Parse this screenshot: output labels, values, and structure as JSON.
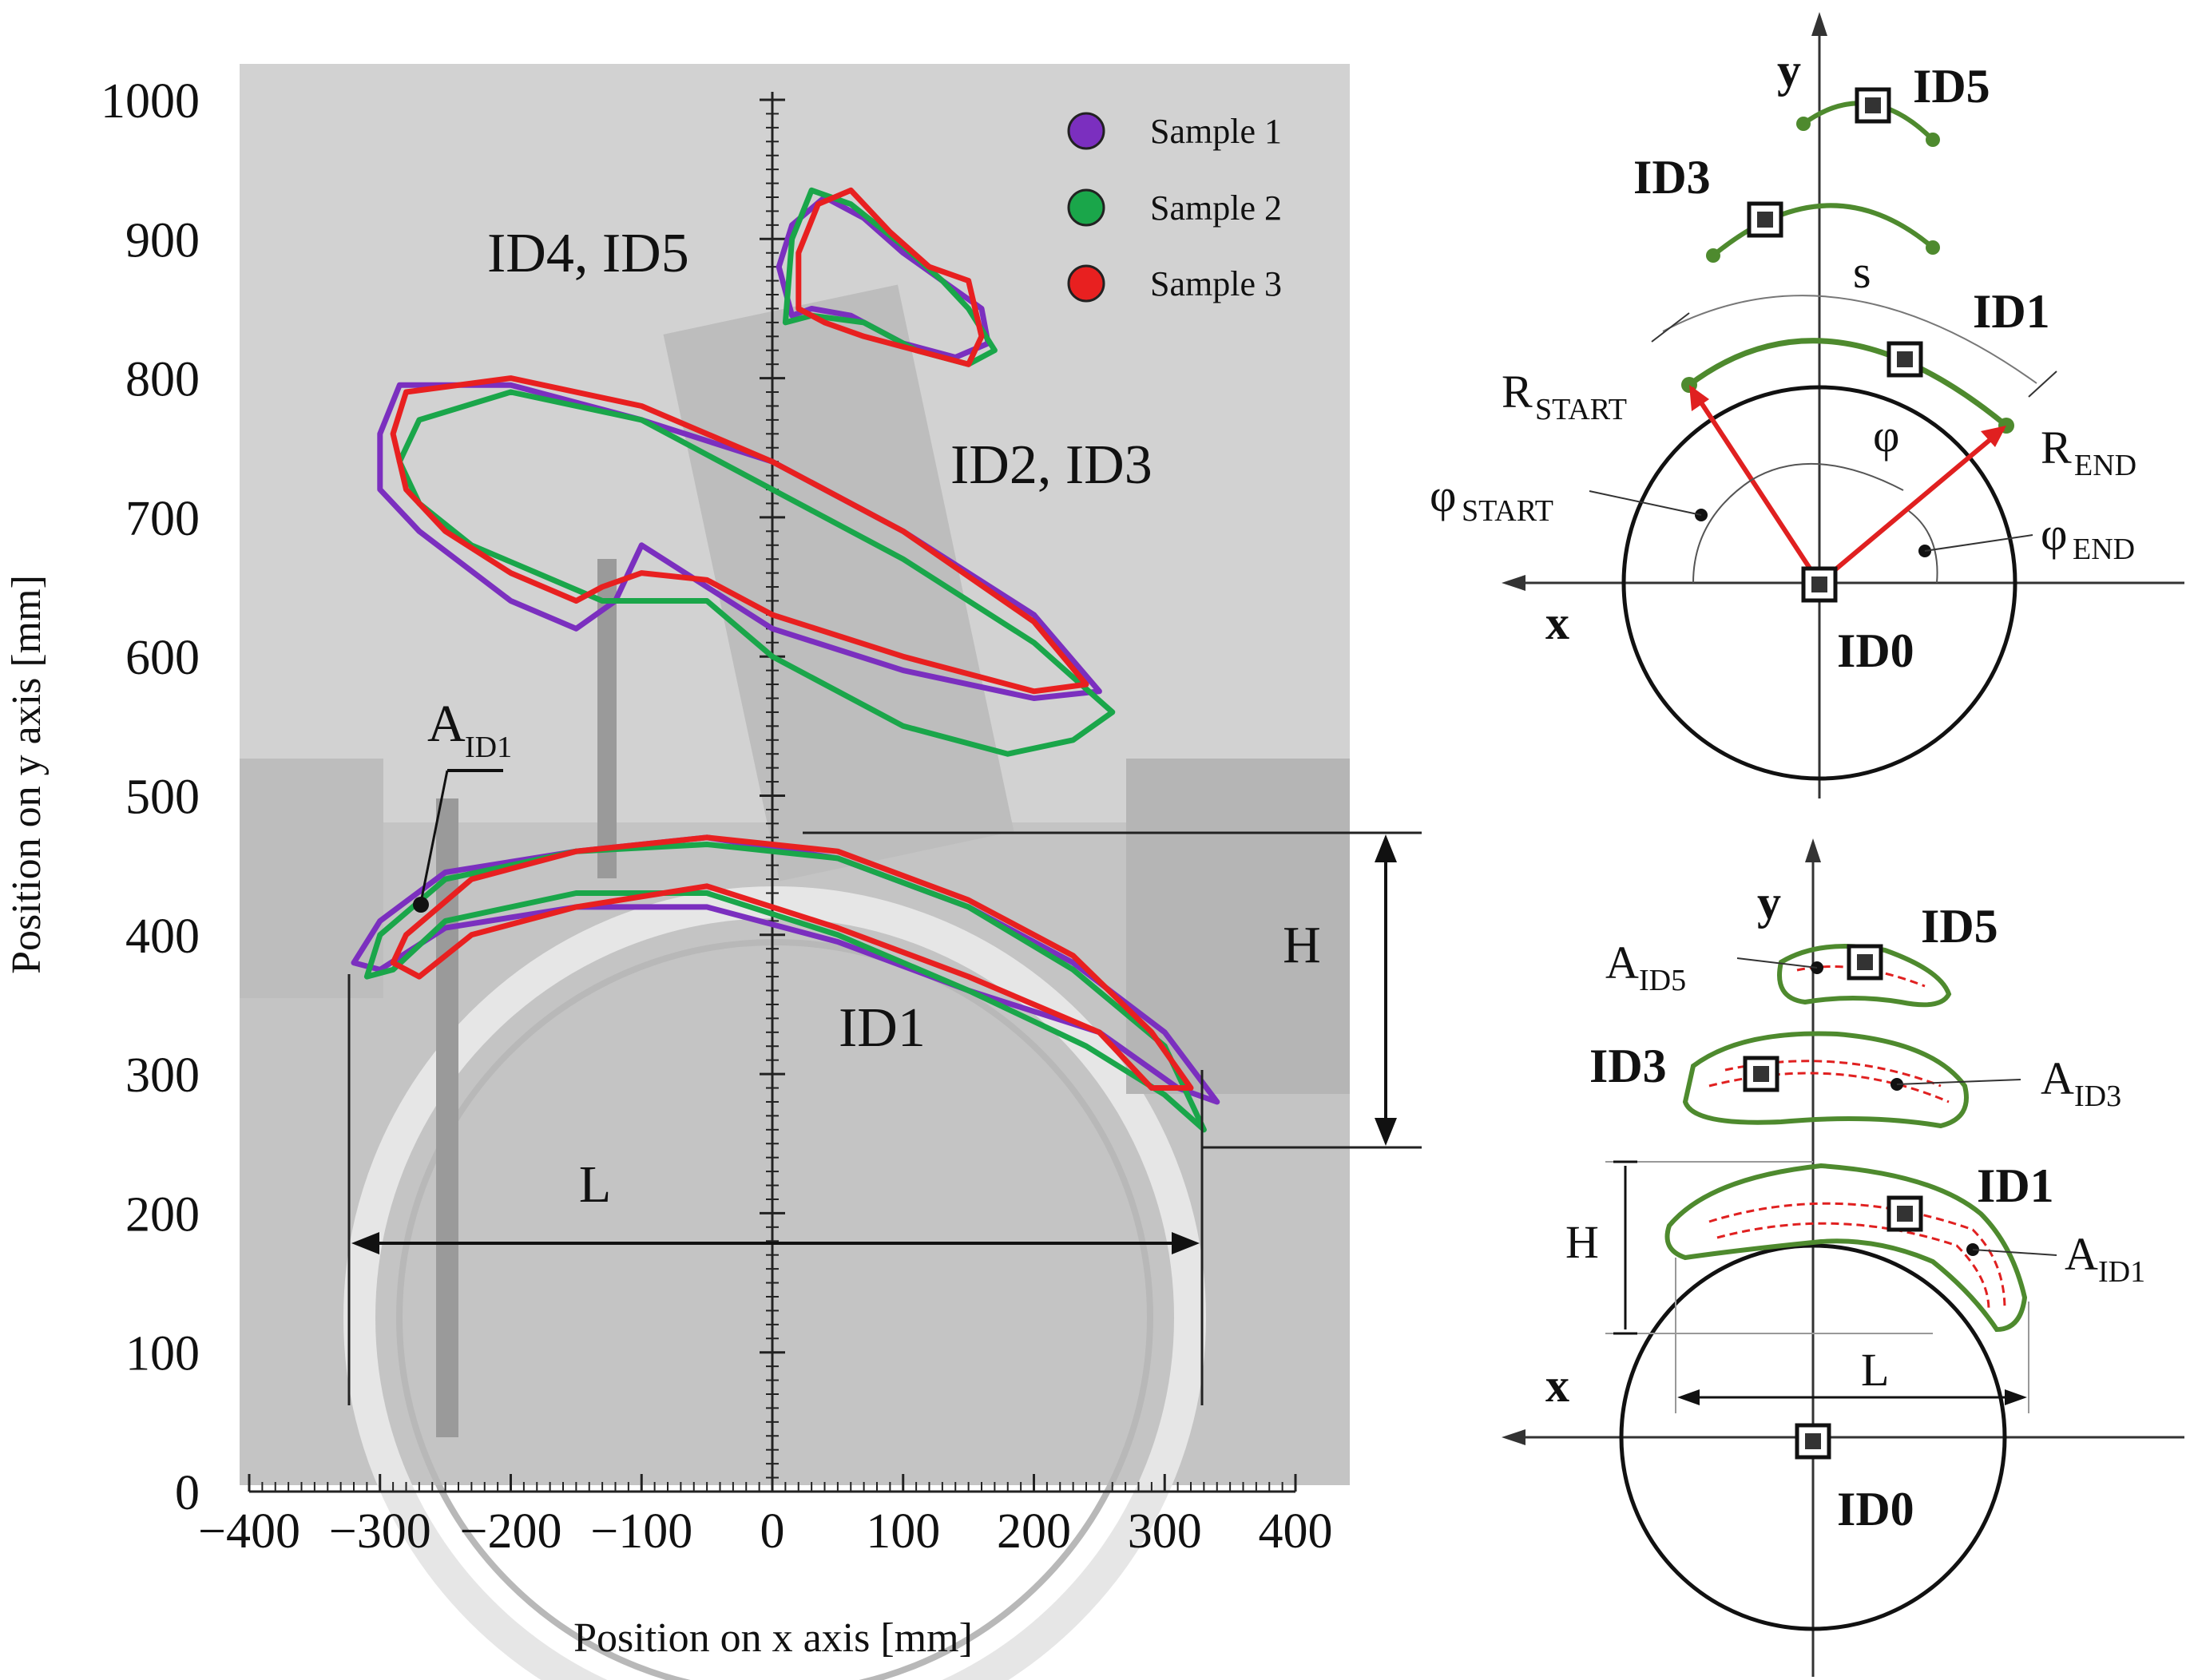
{
  "chart_data": [
    {
      "type": "line",
      "title": "",
      "xlabel": "Position on x axis [mm]",
      "ylabel": "Position on y axis [mm]",
      "xlim": [
        -400,
        400
      ],
      "ylim": [
        0,
        1000
      ],
      "x_ticks": [
        -400,
        -300,
        -200,
        -100,
        0,
        100,
        200,
        300,
        400
      ],
      "x_tick_labels": [
        "−400",
        "−300",
        "−200",
        "−100",
        "0",
        "100",
        "200",
        "300",
        "400"
      ],
      "y_ticks": [
        0,
        100,
        200,
        300,
        400,
        500,
        600,
        700,
        800,
        900,
        1000
      ],
      "y_tick_labels": [
        "0",
        "100",
        "200",
        "300",
        "400",
        "500",
        "600",
        "700",
        "800",
        "900",
        "1000"
      ],
      "legend_position": "top-right",
      "series": [
        {
          "name": "Sample 1",
          "color": "#7b2fbf",
          "regions": {
            "ID1": [
              [
                -320,
                380
              ],
              [
                -300,
                410
              ],
              [
                -250,
                445
              ],
              [
                -150,
                460
              ],
              [
                -50,
                470
              ],
              [
                50,
                455
              ],
              [
                150,
                420
              ],
              [
                230,
                380
              ],
              [
                300,
                330
              ],
              [
                340,
                280
              ],
              [
                310,
                290
              ],
              [
                250,
                330
              ],
              [
                150,
                360
              ],
              [
                50,
                395
              ],
              [
                -50,
                420
              ],
              [
                -150,
                420
              ],
              [
                -250,
                405
              ],
              [
                -300,
                375
              ]
            ],
            "ID2_ID3": [
              [
                -300,
                760
              ],
              [
                -285,
                795
              ],
              [
                -200,
                795
              ],
              [
                -100,
                770
              ],
              [
                0,
                740
              ],
              [
                100,
                690
              ],
              [
                200,
                630
              ],
              [
                250,
                575
              ],
              [
                200,
                570
              ],
              [
                100,
                590
              ],
              [
                0,
                620
              ],
              [
                -50,
                650
              ],
              [
                -100,
                680
              ],
              [
                -120,
                640
              ],
              [
                -150,
                620
              ],
              [
                -200,
                640
              ],
              [
                -270,
                690
              ],
              [
                -300,
                720
              ]
            ],
            "ID4_ID5": [
              [
                15,
                845
              ],
              [
                5,
                880
              ],
              [
                15,
                910
              ],
              [
                40,
                930
              ],
              [
                70,
                915
              ],
              [
                100,
                890
              ],
              [
                130,
                870
              ],
              [
                160,
                850
              ],
              [
                165,
                825
              ],
              [
                140,
                815
              ],
              [
                100,
                825
              ],
              [
                60,
                845
              ],
              [
                30,
                850
              ]
            ]
          }
        },
        {
          "name": "Sample 2",
          "color": "#1aa64a",
          "regions": {
            "ID1": [
              [
                -310,
                370
              ],
              [
                -300,
                400
              ],
              [
                -250,
                440
              ],
              [
                -150,
                460
              ],
              [
                -50,
                465
              ],
              [
                50,
                455
              ],
              [
                150,
                420
              ],
              [
                230,
                375
              ],
              [
                300,
                320
              ],
              [
                330,
                260
              ],
              [
                300,
                285
              ],
              [
                240,
                320
              ],
              [
                150,
                360
              ],
              [
                50,
                400
              ],
              [
                -50,
                430
              ],
              [
                -150,
                430
              ],
              [
                -250,
                410
              ],
              [
                -290,
                375
              ]
            ],
            "ID2_ID3": [
              [
                -285,
                740
              ],
              [
                -270,
                770
              ],
              [
                -200,
                790
              ],
              [
                -100,
                770
              ],
              [
                0,
                720
              ],
              [
                100,
                670
              ],
              [
                200,
                610
              ],
              [
                260,
                560
              ],
              [
                230,
                540
              ],
              [
                180,
                530
              ],
              [
                100,
                550
              ],
              [
                0,
                600
              ],
              [
                -50,
                640
              ],
              [
                -100,
                640
              ],
              [
                -130,
                640
              ],
              [
                -180,
                660
              ],
              [
                -230,
                680
              ],
              [
                -270,
                710
              ]
            ],
            "ID4_ID5": [
              [
                10,
                840
              ],
              [
                15,
                900
              ],
              [
                30,
                935
              ],
              [
                60,
                925
              ],
              [
                100,
                895
              ],
              [
                130,
                870
              ],
              [
                150,
                850
              ],
              [
                170,
                820
              ],
              [
                150,
                810
              ],
              [
                110,
                820
              ],
              [
                70,
                840
              ],
              [
                30,
                845
              ]
            ]
          }
        },
        {
          "name": "Sample 3",
          "color": "#e82020",
          "regions": {
            "ID1": [
              [
                -290,
                380
              ],
              [
                -280,
                400
              ],
              [
                -230,
                440
              ],
              [
                -150,
                460
              ],
              [
                -50,
                470
              ],
              [
                50,
                460
              ],
              [
                150,
                425
              ],
              [
                230,
                385
              ],
              [
                290,
                330
              ],
              [
                320,
                290
              ],
              [
                290,
                290
              ],
              [
                250,
                330
              ],
              [
                150,
                370
              ],
              [
                50,
                405
              ],
              [
                -50,
                435
              ],
              [
                -150,
                420
              ],
              [
                -230,
                400
              ],
              [
                -270,
                370
              ]
            ],
            "ID2_ID3": [
              [
                -290,
                760
              ],
              [
                -280,
                790
              ],
              [
                -200,
                800
              ],
              [
                -100,
                780
              ],
              [
                0,
                740
              ],
              [
                100,
                690
              ],
              [
                200,
                625
              ],
              [
                240,
                580
              ],
              [
                200,
                575
              ],
              [
                100,
                600
              ],
              [
                0,
                630
              ],
              [
                -50,
                655
              ],
              [
                -100,
                660
              ],
              [
                -130,
                650
              ],
              [
                -150,
                640
              ],
              [
                -200,
                660
              ],
              [
                -250,
                690
              ],
              [
                -280,
                720
              ]
            ],
            "ID4_ID5": [
              [
                20,
                850
              ],
              [
                20,
                890
              ],
              [
                35,
                925
              ],
              [
                60,
                935
              ],
              [
                90,
                905
              ],
              [
                120,
                880
              ],
              [
                150,
                870
              ],
              [
                160,
                830
              ],
              [
                150,
                810
              ],
              [
                110,
                820
              ],
              [
                70,
                830
              ],
              [
                40,
                840
              ]
            ]
          }
        }
      ],
      "region_labels": [
        "ID4, ID5",
        "ID2, ID3",
        "ID1"
      ],
      "annotations": {
        "aid1": "A",
        "aid1_sub": "ID1",
        "length": "L",
        "height": "H"
      }
    }
  ],
  "schematic_top": {
    "axis_y": "y",
    "axis_x": "x",
    "markers": [
      "ID5",
      "ID3",
      "ID1",
      "ID0"
    ],
    "arc_label": "s",
    "angle": "φ",
    "r_start": "R",
    "r_start_sub": "START",
    "r_end": "R",
    "r_end_sub": "END",
    "phi_start": "φ",
    "phi_start_sub": "START",
    "phi_end": "φ",
    "phi_end_sub": "END"
  },
  "schematic_bottom": {
    "axis_y": "y",
    "axis_x": "x",
    "markers": [
      "ID5",
      "ID3",
      "ID1",
      "ID0"
    ],
    "area_labels": [
      {
        "main": "A",
        "sub": "ID5"
      },
      {
        "main": "A",
        "sub": "ID3"
      },
      {
        "main": "A",
        "sub": "ID1"
      }
    ],
    "height": "H",
    "length": "L"
  },
  "colors": {
    "photo_bg": "#cfcfcf",
    "green_marker": "#4e8a2e",
    "red_vector": "#e02020"
  }
}
